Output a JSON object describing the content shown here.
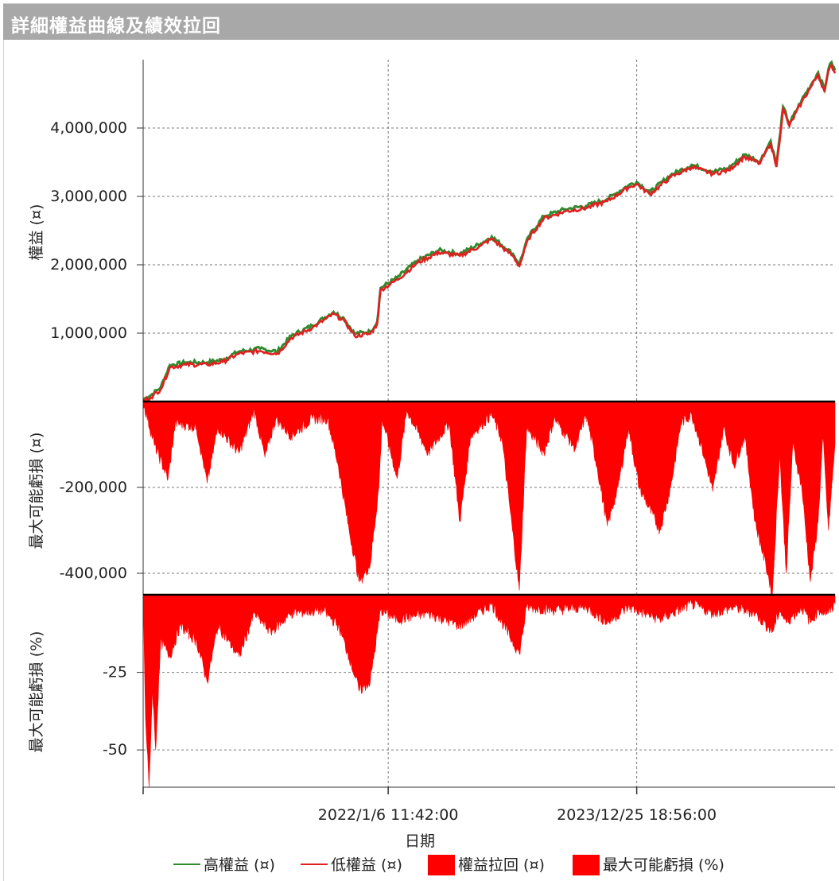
{
  "window": {
    "title": "詳細權益曲線及績效拉回"
  },
  "chart_data": [
    {
      "type": "line",
      "id": "equity",
      "ylabel": "權益 (¤)",
      "yticks": [
        1000000,
        2000000,
        3000000,
        4000000
      ],
      "ytick_labels": [
        "1,000,000",
        "2,000,000",
        "3,000,000",
        "4,000,000"
      ],
      "ylim": [
        0,
        5000000
      ],
      "x_range": [
        "2020-01-29",
        "2025-07-20"
      ],
      "grid": true,
      "series": [
        {
          "name": "高權益 (¤)",
          "color": "#2e8b2e",
          "points": [
            [
              "2020-01-29",
              20000
            ],
            [
              "2020-02-20",
              80000
            ],
            [
              "2020-03-20",
              200000
            ],
            [
              "2020-04-15",
              520000
            ],
            [
              "2020-06-01",
              560000
            ],
            [
              "2020-08-01",
              560000
            ],
            [
              "2020-09-15",
              600000
            ],
            [
              "2020-11-01",
              720000
            ],
            [
              "2021-01-01",
              760000
            ],
            [
              "2021-02-20",
              720000
            ],
            [
              "2021-04-01",
              950000
            ],
            [
              "2021-06-01",
              1100000
            ],
            [
              "2021-08-01",
              1300000
            ],
            [
              "2021-09-01",
              1200000
            ],
            [
              "2021-10-01",
              980000
            ],
            [
              "2021-11-15",
              1010000
            ],
            [
              "2021-12-05",
              1150000
            ],
            [
              "2021-12-15",
              1650000
            ],
            [
              "2022-02-01",
              1800000
            ],
            [
              "2022-04-01",
              2050000
            ],
            [
              "2022-06-01",
              2200000
            ],
            [
              "2022-08-01",
              2150000
            ],
            [
              "2022-10-01",
              2300000
            ],
            [
              "2022-11-01",
              2400000
            ],
            [
              "2023-01-01",
              2150000
            ],
            [
              "2023-01-20",
              2000000
            ],
            [
              "2023-02-15",
              2400000
            ],
            [
              "2023-04-01",
              2700000
            ],
            [
              "2023-06-01",
              2800000
            ],
            [
              "2023-08-01",
              2850000
            ],
            [
              "2023-10-01",
              2950000
            ],
            [
              "2023-12-01",
              3150000
            ],
            [
              "2023-12-25",
              3200000
            ],
            [
              "2024-02-01",
              3050000
            ],
            [
              "2024-04-01",
              3300000
            ],
            [
              "2024-06-01",
              3450000
            ],
            [
              "2024-08-01",
              3350000
            ],
            [
              "2024-09-15",
              3400000
            ],
            [
              "2024-11-01",
              3600000
            ],
            [
              "2024-12-15",
              3500000
            ],
            [
              "2025-01-15",
              3800000
            ],
            [
              "2025-02-01",
              3450000
            ],
            [
              "2025-02-20",
              4300000
            ],
            [
              "2025-03-10",
              4050000
            ],
            [
              "2025-04-15",
              4400000
            ],
            [
              "2025-05-15",
              4650000
            ],
            [
              "2025-06-01",
              4800000
            ],
            [
              "2025-06-20",
              4550000
            ],
            [
              "2025-07-01",
              4850000
            ],
            [
              "2025-07-10",
              4950000
            ],
            [
              "2025-07-20",
              4830000
            ]
          ]
        },
        {
          "name": "低權益 (¤)",
          "color": "#e02020",
          "points": [
            [
              "2020-01-29",
              10000
            ],
            [
              "2020-02-20",
              60000
            ],
            [
              "2020-03-20",
              180000
            ],
            [
              "2020-04-15",
              500000
            ],
            [
              "2020-06-01",
              540000
            ],
            [
              "2020-08-01",
              540000
            ],
            [
              "2020-09-15",
              580000
            ],
            [
              "2020-11-01",
              700000
            ],
            [
              "2021-01-01",
              740000
            ],
            [
              "2021-02-20",
              700000
            ],
            [
              "2021-04-01",
              930000
            ],
            [
              "2021-06-01",
              1080000
            ],
            [
              "2021-08-01",
              1280000
            ],
            [
              "2021-09-01",
              1180000
            ],
            [
              "2021-10-01",
              960000
            ],
            [
              "2021-11-15",
              990000
            ],
            [
              "2021-12-05",
              1130000
            ],
            [
              "2021-12-15",
              1630000
            ],
            [
              "2022-02-01",
              1780000
            ],
            [
              "2022-04-01",
              2030000
            ],
            [
              "2022-06-01",
              2180000
            ],
            [
              "2022-08-01",
              2130000
            ],
            [
              "2022-10-01",
              2280000
            ],
            [
              "2022-11-01",
              2380000
            ],
            [
              "2023-01-01",
              2130000
            ],
            [
              "2023-01-20",
              1980000
            ],
            [
              "2023-02-15",
              2380000
            ],
            [
              "2023-04-01",
              2680000
            ],
            [
              "2023-06-01",
              2780000
            ],
            [
              "2023-08-01",
              2830000
            ],
            [
              "2023-10-01",
              2930000
            ],
            [
              "2023-12-01",
              3130000
            ],
            [
              "2023-12-25",
              3180000
            ],
            [
              "2024-02-01",
              3030000
            ],
            [
              "2024-04-01",
              3280000
            ],
            [
              "2024-06-01",
              3430000
            ],
            [
              "2024-08-01",
              3330000
            ],
            [
              "2024-09-15",
              3380000
            ],
            [
              "2024-11-01",
              3580000
            ],
            [
              "2024-12-15",
              3480000
            ],
            [
              "2025-01-15",
              3780000
            ],
            [
              "2025-02-01",
              3430000
            ],
            [
              "2025-02-20",
              4280000
            ],
            [
              "2025-03-10",
              4030000
            ],
            [
              "2025-04-15",
              4380000
            ],
            [
              "2025-05-15",
              4630000
            ],
            [
              "2025-06-01",
              4780000
            ],
            [
              "2025-06-20",
              4530000
            ],
            [
              "2025-07-01",
              4830000
            ],
            [
              "2025-07-10",
              4920000
            ],
            [
              "2025-07-20",
              4800000
            ]
          ]
        }
      ]
    },
    {
      "type": "area",
      "id": "drawdown-amount",
      "ylabel": "最大可能虧損 (¤)",
      "yticks": [
        -200000,
        -400000
      ],
      "ytick_labels": [
        "-200,000",
        "-400,000"
      ],
      "ylim": [
        -450000,
        0
      ],
      "grid": true,
      "series": [
        {
          "name": "權益拉回 (¤)",
          "color": "#ff0000",
          "points": [
            [
              "2020-01-29",
              0
            ],
            [
              "2020-03-01",
              -100000
            ],
            [
              "2020-04-10",
              -180000
            ],
            [
              "2020-05-01",
              -50000
            ],
            [
              "2020-07-01",
              -60000
            ],
            [
              "2020-08-01",
              -190000
            ],
            [
              "2020-09-01",
              -60000
            ],
            [
              "2020-11-01",
              -120000
            ],
            [
              "2020-12-15",
              -20000
            ],
            [
              "2021-01-15",
              -130000
            ],
            [
              "2021-02-15",
              -40000
            ],
            [
              "2021-04-01",
              -80000
            ],
            [
              "2021-06-01",
              -40000
            ],
            [
              "2021-07-15",
              -40000
            ],
            [
              "2021-08-15",
              -150000
            ],
            [
              "2021-09-15",
              -300000
            ],
            [
              "2021-10-15",
              -420000
            ],
            [
              "2021-11-15",
              -380000
            ],
            [
              "2021-12-10",
              -200000
            ],
            [
              "2021-12-20",
              -40000
            ],
            [
              "2022-02-01",
              -180000
            ],
            [
              "2022-03-01",
              -20000
            ],
            [
              "2022-05-01",
              -120000
            ],
            [
              "2022-07-01",
              -50000
            ],
            [
              "2022-08-01",
              -280000
            ],
            [
              "2022-09-01",
              -80000
            ],
            [
              "2022-11-01",
              -30000
            ],
            [
              "2022-12-01",
              -90000
            ],
            [
              "2023-01-20",
              -440000
            ],
            [
              "2023-02-10",
              -60000
            ],
            [
              "2023-04-01",
              -120000
            ],
            [
              "2023-05-01",
              -40000
            ],
            [
              "2023-07-01",
              -110000
            ],
            [
              "2023-08-01",
              -30000
            ],
            [
              "2023-09-01",
              -150000
            ],
            [
              "2023-10-01",
              -290000
            ],
            [
              "2023-11-01",
              -200000
            ],
            [
              "2023-12-01",
              -60000
            ],
            [
              "2024-01-01",
              -200000
            ],
            [
              "2024-03-01",
              -300000
            ],
            [
              "2024-04-01",
              -200000
            ],
            [
              "2024-05-01",
              -50000
            ],
            [
              "2024-06-01",
              -30000
            ],
            [
              "2024-07-01",
              -110000
            ],
            [
              "2024-08-01",
              -210000
            ],
            [
              "2024-09-01",
              -60000
            ],
            [
              "2024-10-01",
              -150000
            ],
            [
              "2024-11-01",
              -80000
            ],
            [
              "2024-12-01",
              -280000
            ],
            [
              "2025-01-01",
              -380000
            ],
            [
              "2025-01-20",
              -450000
            ],
            [
              "2025-02-10",
              -120000
            ],
            [
              "2025-03-01",
              -400000
            ],
            [
              "2025-03-20",
              -100000
            ],
            [
              "2025-04-15",
              -200000
            ],
            [
              "2025-05-10",
              -420000
            ],
            [
              "2025-06-01",
              -280000
            ],
            [
              "2025-06-15",
              -80000
            ],
            [
              "2025-07-01",
              -300000
            ],
            [
              "2025-07-20",
              -100000
            ]
          ]
        }
      ]
    },
    {
      "type": "area",
      "id": "drawdown-percent",
      "ylabel": "最大可能虧損 (%)",
      "yticks": [
        -25,
        -50
      ],
      "ytick_labels": [
        "-25",
        "-50"
      ],
      "ylim": [
        -62,
        0
      ],
      "grid": true,
      "series": [
        {
          "name": "最大可能虧損 (%)",
          "color": "#ff0000",
          "points": [
            [
              "2020-01-29",
              0
            ],
            [
              "2020-02-05",
              -40
            ],
            [
              "2020-02-15",
              -62
            ],
            [
              "2020-02-25",
              -30
            ],
            [
              "2020-03-05",
              -50
            ],
            [
              "2020-03-20",
              -15
            ],
            [
              "2020-04-15",
              -20
            ],
            [
              "2020-05-15",
              -10
            ],
            [
              "2020-07-01",
              -15
            ],
            [
              "2020-08-01",
              -28
            ],
            [
              "2020-09-01",
              -10
            ],
            [
              "2020-11-01",
              -20
            ],
            [
              "2020-12-15",
              -6
            ],
            [
              "2021-02-01",
              -12
            ],
            [
              "2021-04-01",
              -6
            ],
            [
              "2021-07-01",
              -5
            ],
            [
              "2021-08-15",
              -10
            ],
            [
              "2021-09-15",
              -20
            ],
            [
              "2021-10-15",
              -31
            ],
            [
              "2021-11-15",
              -28
            ],
            [
              "2021-12-15",
              -5
            ],
            [
              "2022-02-01",
              -8
            ],
            [
              "2022-05-01",
              -6
            ],
            [
              "2022-08-01",
              -10
            ],
            [
              "2022-11-01",
              -3
            ],
            [
              "2023-01-20",
              -19
            ],
            [
              "2023-02-10",
              -4
            ],
            [
              "2023-05-01",
              -5
            ],
            [
              "2023-08-01",
              -4
            ],
            [
              "2023-10-01",
              -9
            ],
            [
              "2023-12-01",
              -4
            ],
            [
              "2024-03-01",
              -8
            ],
            [
              "2024-06-01",
              -3
            ],
            [
              "2024-08-01",
              -6
            ],
            [
              "2024-10-01",
              -4
            ],
            [
              "2024-12-01",
              -6
            ],
            [
              "2025-01-20",
              -12
            ],
            [
              "2025-02-10",
              -5
            ],
            [
              "2025-03-01",
              -9
            ],
            [
              "2025-04-15",
              -4
            ],
            [
              "2025-05-10",
              -9
            ],
            [
              "2025-06-01",
              -5
            ],
            [
              "2025-07-01",
              -6
            ],
            [
              "2025-07-20",
              -3
            ]
          ]
        }
      ]
    }
  ],
  "x_axis": {
    "label": "日期",
    "ticks": [
      {
        "date": "2020-01-29",
        "label": ""
      },
      {
        "date": "2022-01-06",
        "label": "2022/1/6 11:42:00"
      },
      {
        "date": "2023-12-25",
        "label": "2023/12/25 18:56:00"
      }
    ]
  },
  "legend": [
    {
      "label": "高權益 (¤)",
      "kind": "line",
      "color": "#2e8b2e"
    },
    {
      "label": "低權益 (¤)",
      "kind": "line",
      "color": "#e02020"
    },
    {
      "label": "權益拉回 (¤)",
      "kind": "box",
      "color": "#ff0000"
    },
    {
      "label": "最大可能虧損 (%)",
      "kind": "box",
      "color": "#ff0000"
    }
  ]
}
